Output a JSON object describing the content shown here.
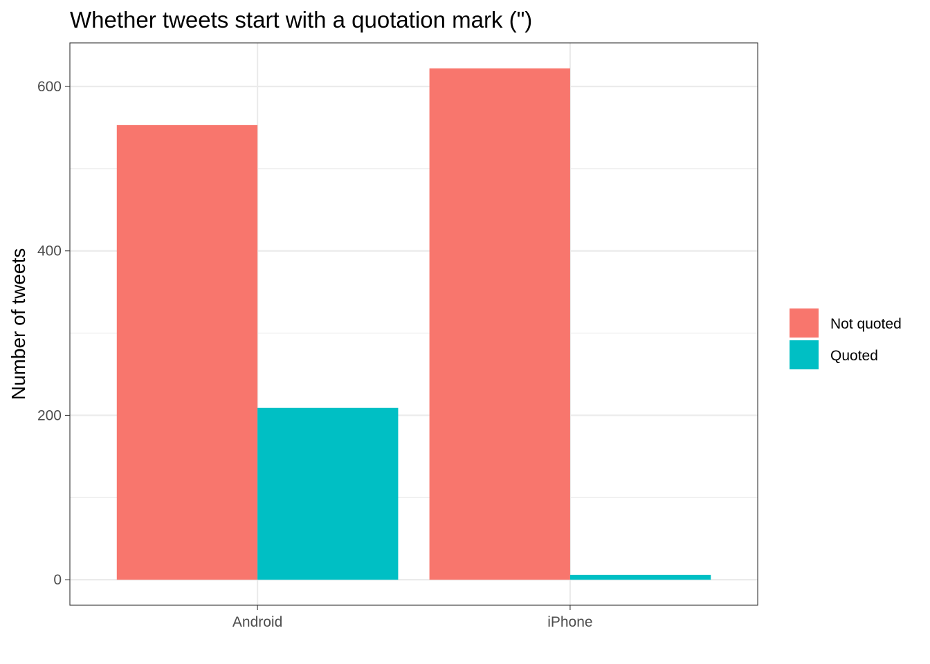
{
  "chart_data": {
    "type": "bar",
    "title": "Whether tweets start with a quotation mark (\")",
    "xlabel": "",
    "ylabel": "Number of tweets",
    "categories": [
      "Android",
      "iPhone"
    ],
    "series": [
      {
        "name": "Not quoted",
        "color": "#F8766D",
        "values": [
          553,
          622
        ]
      },
      {
        "name": "Quoted",
        "color": "#00BFC4",
        "values": [
          209,
          6
        ]
      }
    ],
    "ylim": [
      -31,
      653
    ],
    "yticks": [
      0,
      200,
      400,
      600
    ],
    "ytick_labels": [
      "0",
      "200",
      "400",
      "600"
    ],
    "grid": true,
    "legend": {
      "position": "right"
    }
  }
}
